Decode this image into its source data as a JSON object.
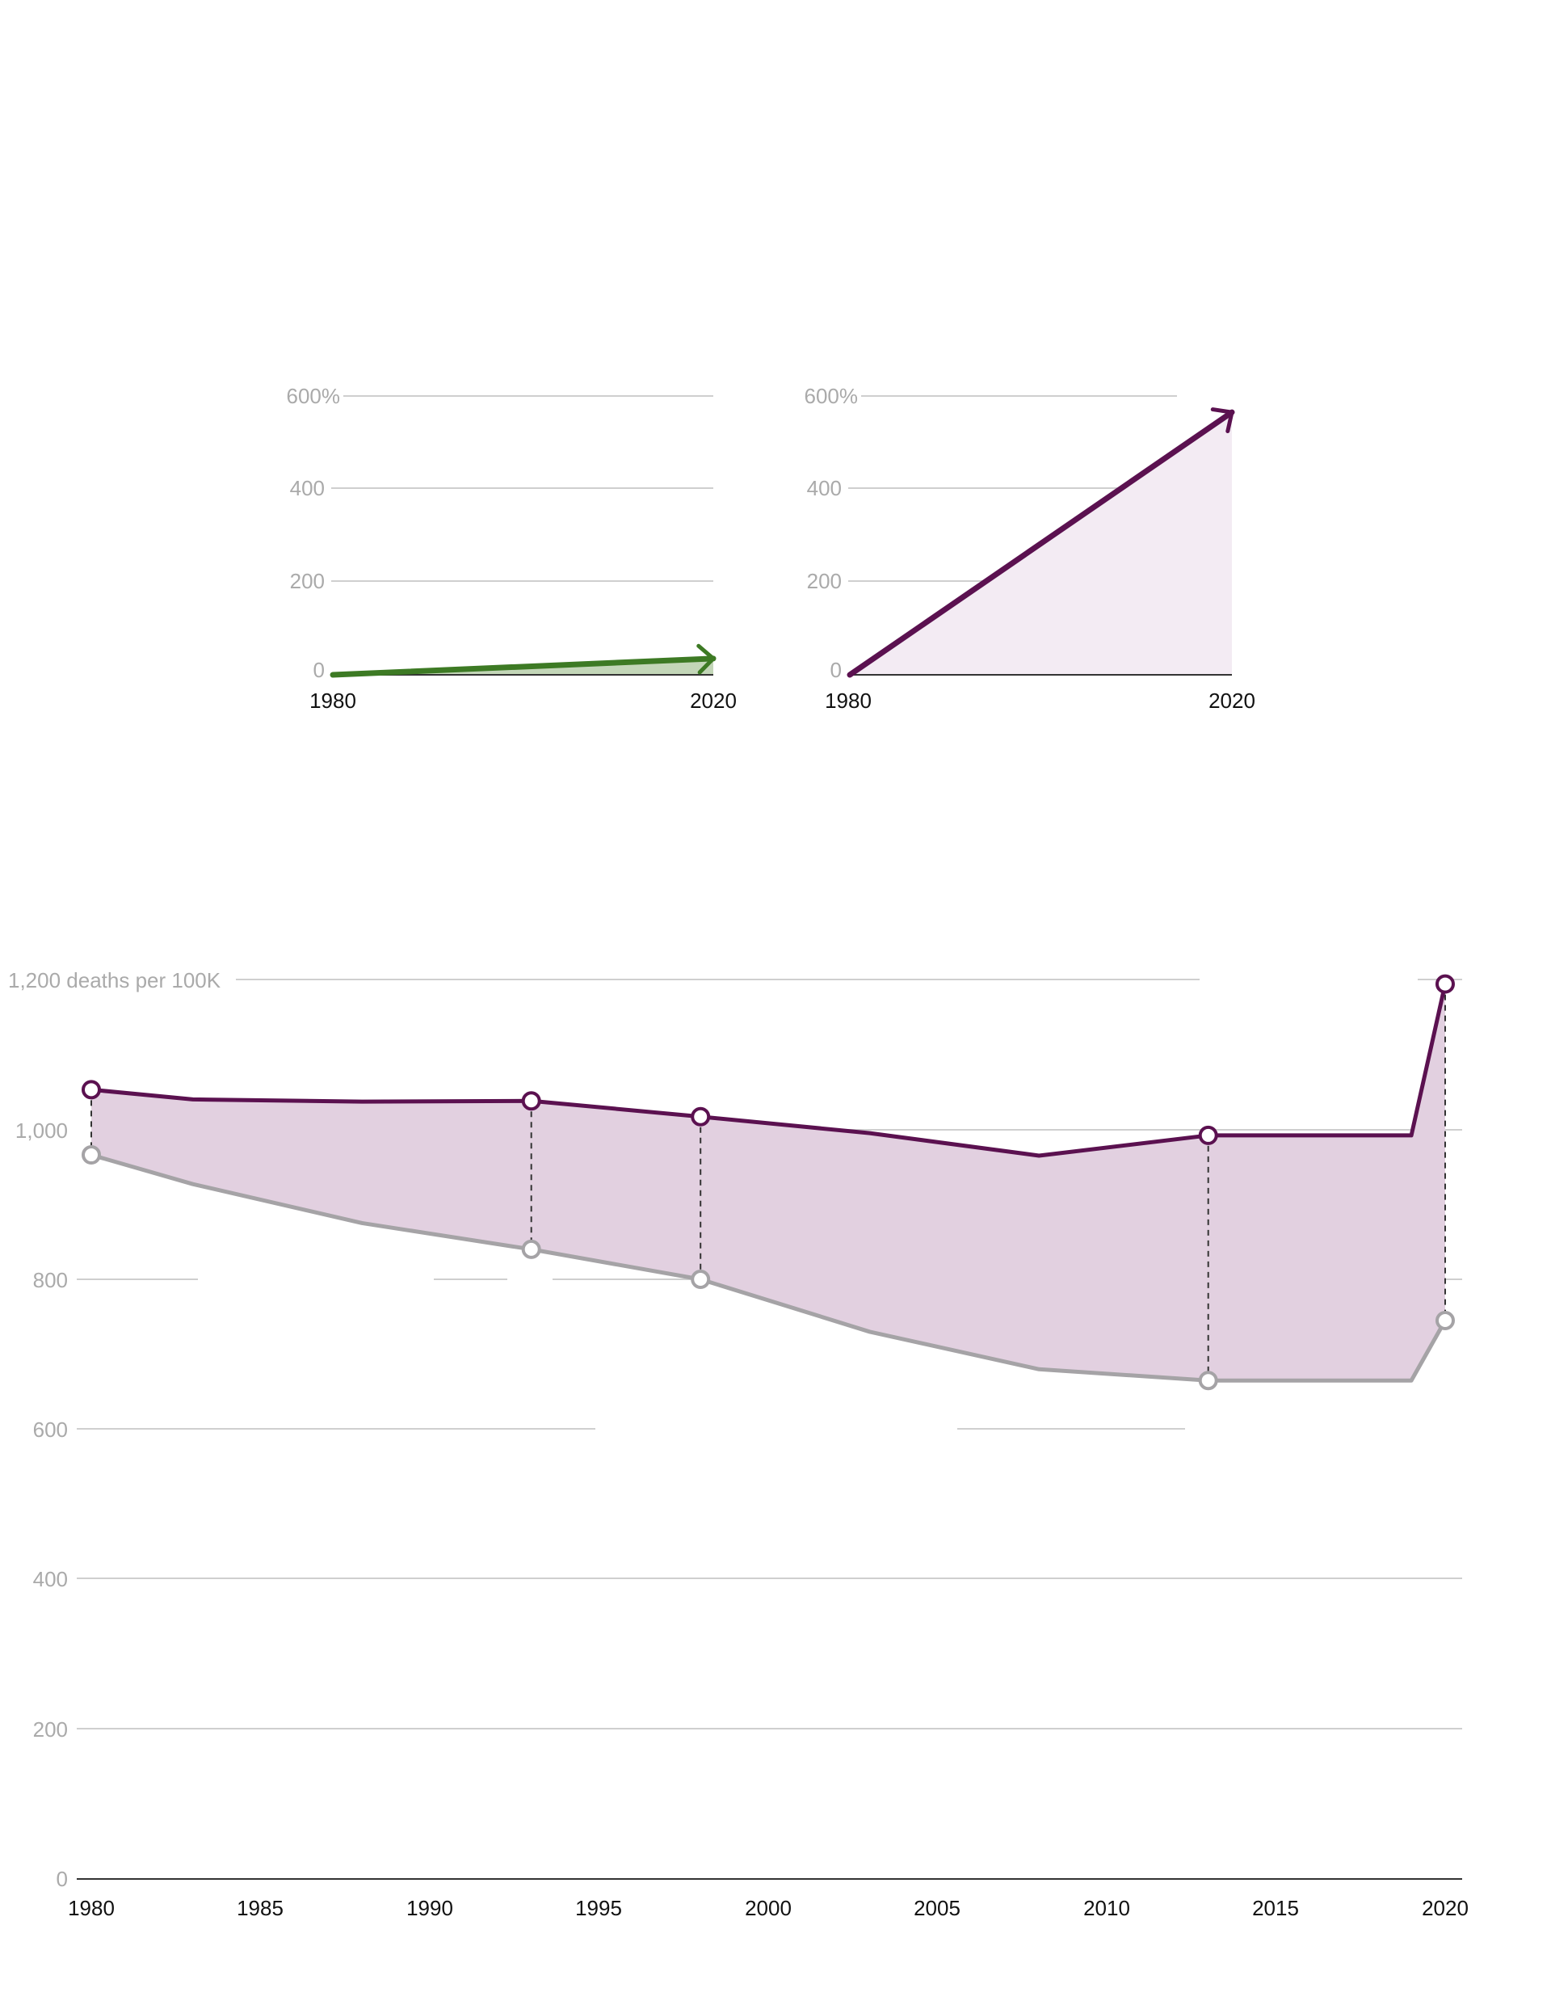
{
  "chart_data": [
    {
      "type": "area",
      "x": [
        1980,
        2020
      ],
      "values": [
        0,
        35
      ],
      "xlim": [
        1980,
        2020
      ],
      "ylim": [
        0,
        600
      ],
      "y_ticks": [
        "0",
        "200",
        "400",
        "600%"
      ],
      "x_ticks": [
        "1980",
        "2020"
      ],
      "color": "#3d7a24",
      "fill": "#c3d6b8",
      "arrow_end": true
    },
    {
      "type": "area",
      "x": [
        1980,
        2020
      ],
      "values": [
        0,
        565
      ],
      "xlim": [
        1980,
        2020
      ],
      "ylim": [
        0,
        600
      ],
      "y_ticks": [
        "0",
        "200",
        "400",
        "600%"
      ],
      "x_ticks": [
        "1980",
        "2020"
      ],
      "color": "#5b1150",
      "fill": "#f3ebf3",
      "arrow_end": true
    },
    {
      "type": "area",
      "x": [
        1980,
        1983,
        1988,
        1993,
        1998,
        2003,
        2008,
        2013,
        2019,
        2020
      ],
      "series": [
        {
          "values": [
            1053,
            1040,
            1037,
            1038,
            1017,
            995,
            965,
            992,
            992,
            1194
          ],
          "color": "#5b1150"
        },
        {
          "values": [
            966,
            927,
            875,
            840,
            800,
            730,
            680,
            665,
            665,
            745
          ],
          "color": "#a5a3a6"
        }
      ],
      "band_fill": "#e2d0e0",
      "highlighted_years": [
        1980,
        1993,
        1998,
        2013,
        2020
      ],
      "xlim": [
        1980,
        2020
      ],
      "ylim": [
        0,
        1200
      ],
      "y_tick_values": [
        0,
        200,
        400,
        600,
        800,
        1000,
        1200
      ],
      "y_ticks": [
        "0",
        "200",
        "400",
        "600",
        "800",
        "1,000",
        "1,200 deaths per 100K"
      ],
      "x_ticks": [
        "1980",
        "1985",
        "1990",
        "1995",
        "2000",
        "2005",
        "2010",
        "2015",
        "2020"
      ]
    }
  ]
}
